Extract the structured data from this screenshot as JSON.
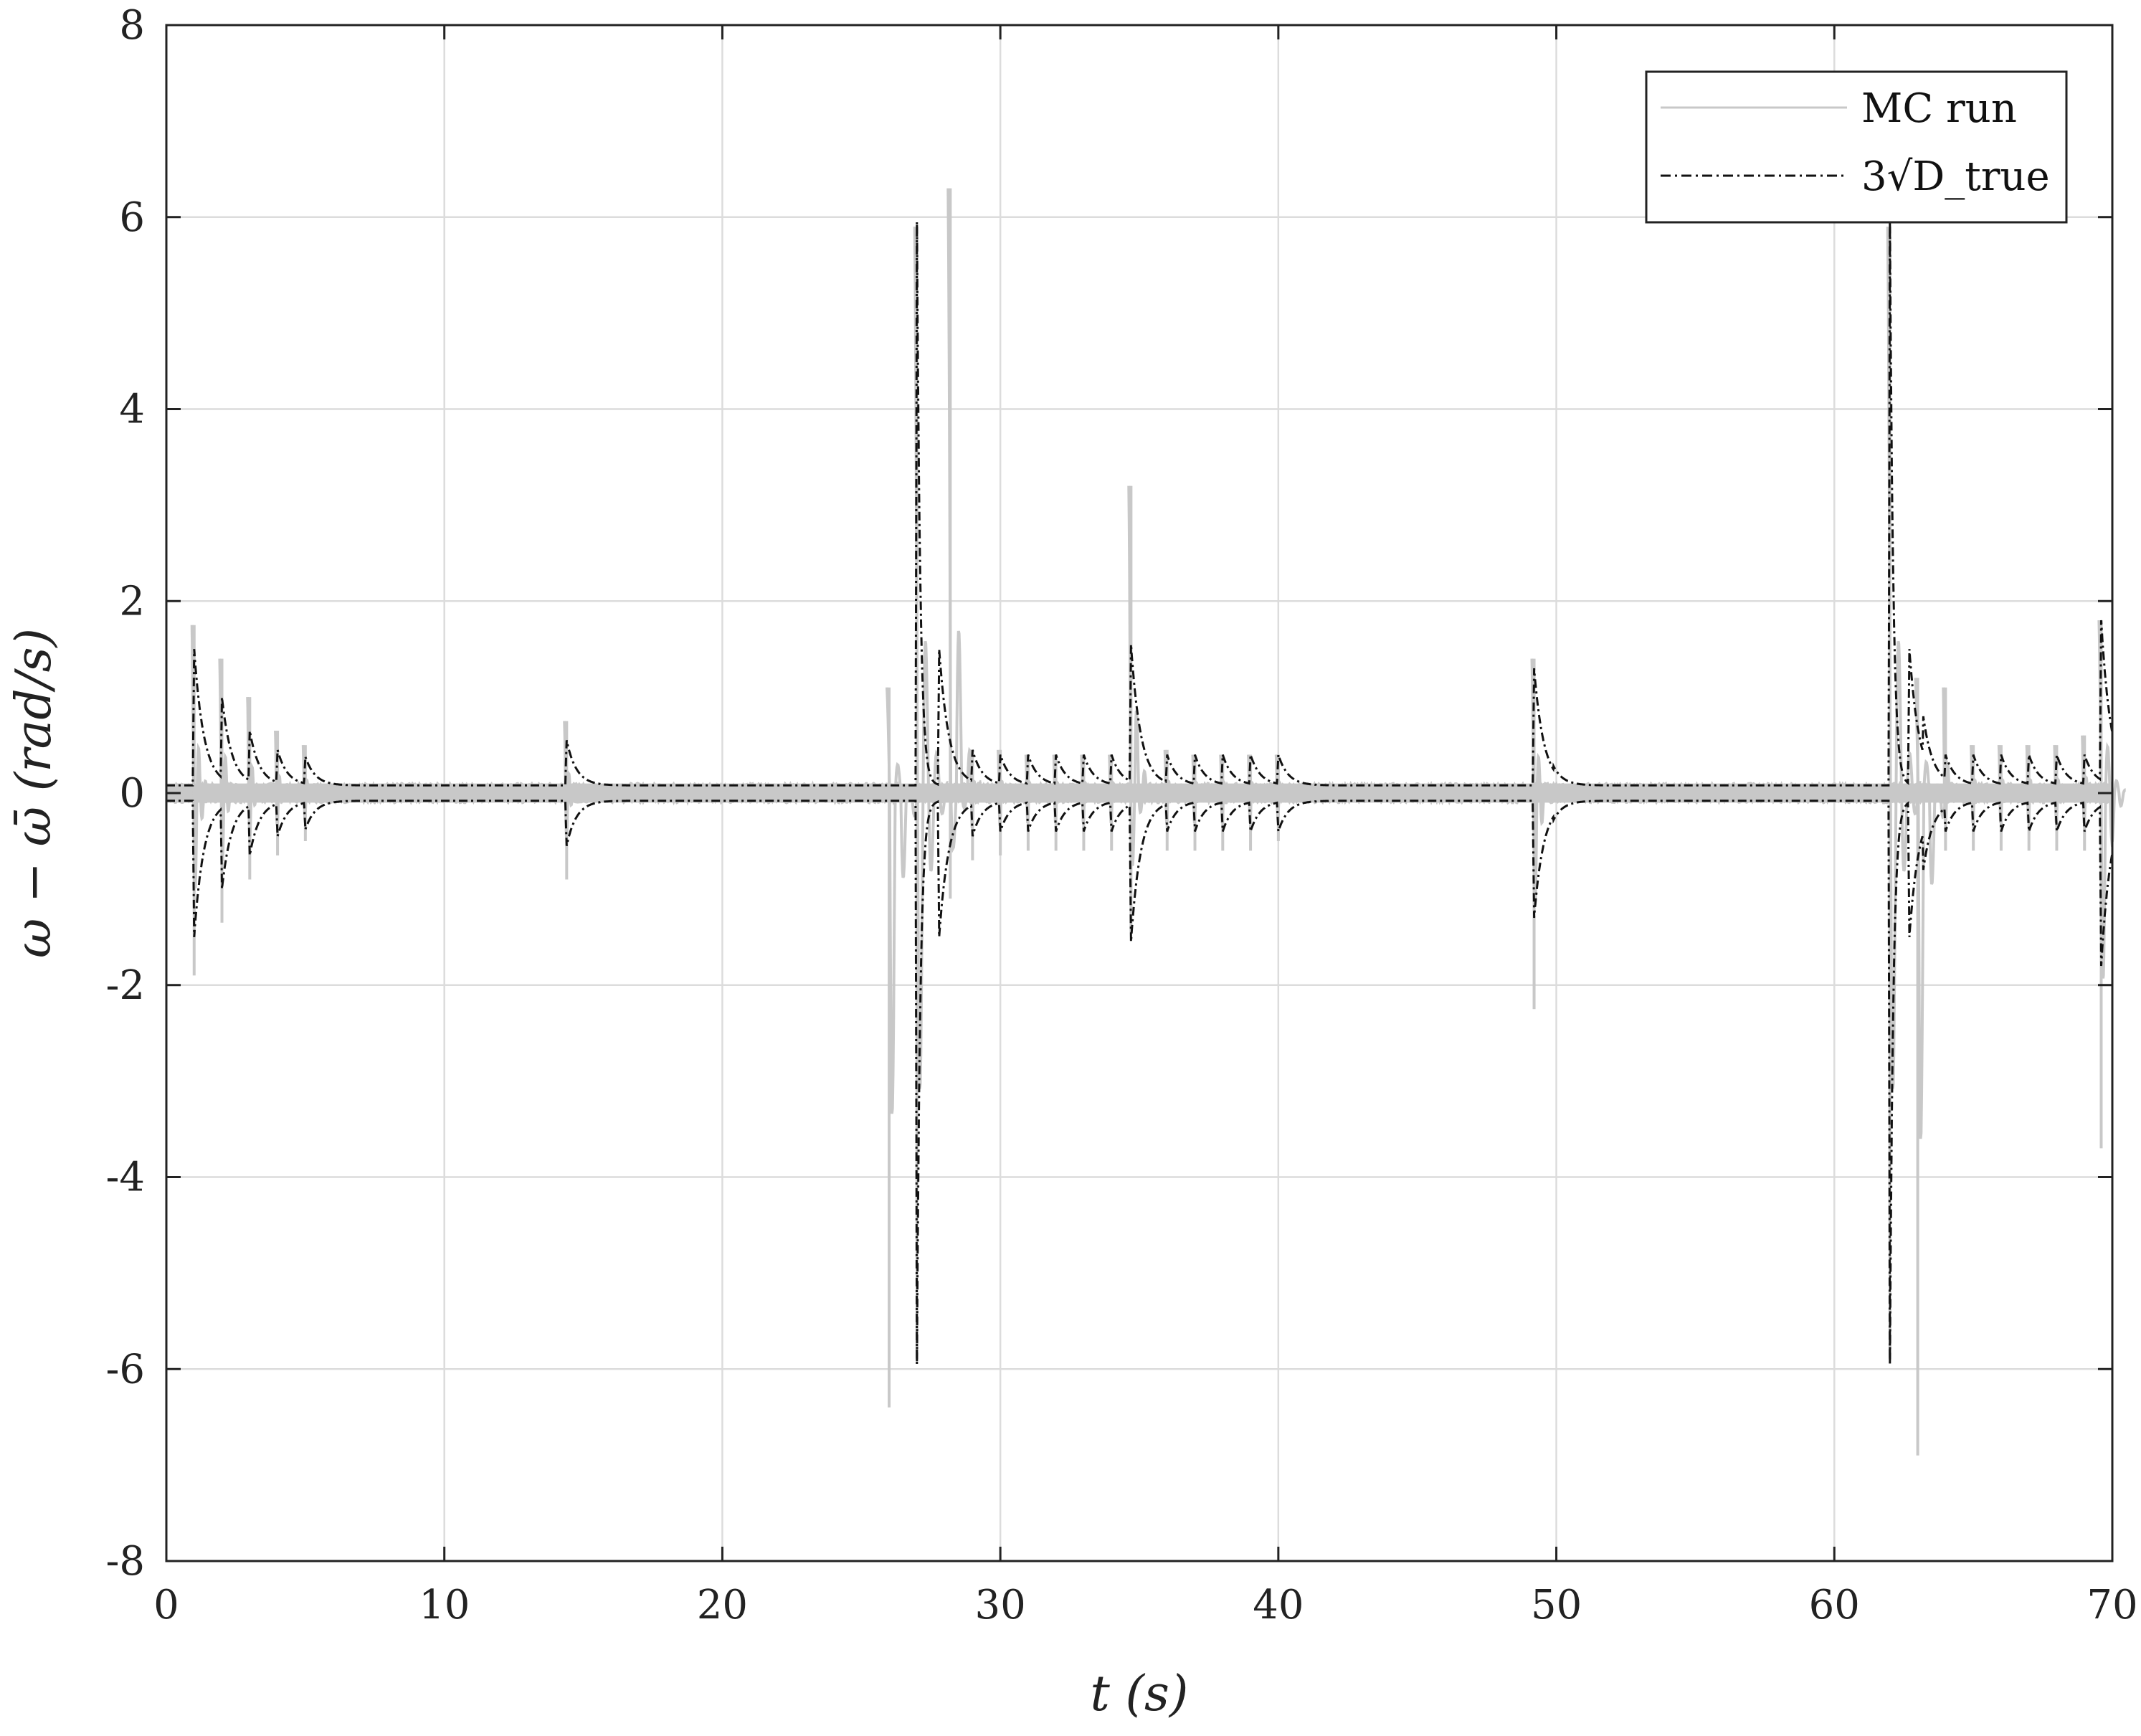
{
  "chart_data": {
    "type": "line",
    "title": "",
    "xlabel": "t (s)",
    "ylabel": "ω − ω̄ (rad/s)",
    "xlim": [
      0,
      70
    ],
    "ylim": [
      -8,
      8
    ],
    "xticks": [
      0,
      10,
      20,
      30,
      40,
      50,
      60,
      70
    ],
    "yticks": [
      -8,
      -6,
      -4,
      -2,
      0,
      2,
      4,
      6,
      8
    ],
    "xtick_labels": [
      "0",
      "10",
      "20",
      "30",
      "40",
      "50",
      "60",
      "70"
    ],
    "ytick_labels": [
      "-8",
      "-6",
      "-4",
      "-2",
      "0",
      "2",
      "4",
      "6",
      "8"
    ],
    "grid": true,
    "legend_position": "top-right",
    "series": [
      {
        "name": "MC run",
        "color": "#c8c8c8",
        "style": "solid",
        "baseline_band": 0.1,
        "events": [
          {
            "t": 1.0,
            "peak": 1.75,
            "trough": -1.9
          },
          {
            "t": 2.0,
            "peak": 1.4,
            "trough": -1.35
          },
          {
            "t": 3.0,
            "peak": 1.0,
            "trough": -0.9
          },
          {
            "t": 4.0,
            "peak": 0.65,
            "trough": -0.65
          },
          {
            "t": 5.0,
            "peak": 0.5,
            "trough": -0.5
          },
          {
            "t": 14.4,
            "peak": 0.75,
            "trough": -0.9
          },
          {
            "t": 26.0,
            "peak": 1.1,
            "trough": -6.4
          },
          {
            "t": 27.0,
            "peak": 5.9,
            "trough": -5.9
          },
          {
            "t": 28.2,
            "peak": 6.3,
            "trough": -1.1
          },
          {
            "t": 29.0,
            "peak": 0.45,
            "trough": -0.7
          },
          {
            "t": 30.0,
            "peak": 0.45,
            "trough": -0.65
          },
          {
            "t": 31.0,
            "peak": 0.4,
            "trough": -0.6
          },
          {
            "t": 32.0,
            "peak": 0.4,
            "trough": -0.6
          },
          {
            "t": 33.0,
            "peak": 0.4,
            "trough": -0.6
          },
          {
            "t": 34.0,
            "peak": 0.4,
            "trough": -0.6
          },
          {
            "t": 34.7,
            "peak": 3.2,
            "trough": -1.45
          },
          {
            "t": 36.0,
            "peak": 0.45,
            "trough": -0.6
          },
          {
            "t": 37.0,
            "peak": 0.4,
            "trough": -0.6
          },
          {
            "t": 38.0,
            "peak": 0.4,
            "trough": -0.6
          },
          {
            "t": 39.0,
            "peak": 0.4,
            "trough": -0.6
          },
          {
            "t": 40.0,
            "peak": 0.4,
            "trough": -0.5
          },
          {
            "t": 49.2,
            "peak": 1.4,
            "trough": -2.25
          },
          {
            "t": 62.0,
            "peak": 5.9,
            "trough": -5.9
          },
          {
            "t": 63.0,
            "peak": 1.2,
            "trough": -6.9
          },
          {
            "t": 64.0,
            "peak": 1.1,
            "trough": -0.6
          },
          {
            "t": 65.0,
            "peak": 0.5,
            "trough": -0.6
          },
          {
            "t": 66.0,
            "peak": 0.5,
            "trough": -0.6
          },
          {
            "t": 67.0,
            "peak": 0.5,
            "trough": -0.6
          },
          {
            "t": 68.0,
            "peak": 0.5,
            "trough": -0.6
          },
          {
            "t": 69.0,
            "peak": 0.6,
            "trough": -0.6
          },
          {
            "t": 69.6,
            "peak": 1.8,
            "trough": -3.7
          }
        ]
      },
      {
        "name": "3√D_true",
        "color": "#111111",
        "style": "dash-dot",
        "baseline": 0.08,
        "symmetric": true,
        "events": [
          {
            "t": 1.0,
            "peak": 1.5
          },
          {
            "t": 1.5,
            "peak": 0.3
          },
          {
            "t": 2.0,
            "peak": 1.0
          },
          {
            "t": 2.5,
            "peak": 0.2
          },
          {
            "t": 3.0,
            "peak": 0.65
          },
          {
            "t": 4.0,
            "peak": 0.45
          },
          {
            "t": 5.0,
            "peak": 0.38
          },
          {
            "t": 14.4,
            "peak": 0.55
          },
          {
            "t": 15.0,
            "peak": 0.12
          },
          {
            "t": 27.0,
            "peak": 5.95
          },
          {
            "t": 27.8,
            "peak": 1.5
          },
          {
            "t": 29.0,
            "peak": 0.45
          },
          {
            "t": 30.0,
            "peak": 0.4
          },
          {
            "t": 31.0,
            "peak": 0.4
          },
          {
            "t": 32.0,
            "peak": 0.4
          },
          {
            "t": 33.0,
            "peak": 0.4
          },
          {
            "t": 34.0,
            "peak": 0.4
          },
          {
            "t": 34.7,
            "peak": 1.55
          },
          {
            "t": 35.3,
            "peak": 0.32
          },
          {
            "t": 36.0,
            "peak": 0.4
          },
          {
            "t": 37.0,
            "peak": 0.4
          },
          {
            "t": 38.0,
            "peak": 0.4
          },
          {
            "t": 39.0,
            "peak": 0.4
          },
          {
            "t": 40.0,
            "peak": 0.4
          },
          {
            "t": 49.2,
            "peak": 1.3
          },
          {
            "t": 49.9,
            "peak": 0.28
          },
          {
            "t": 62.0,
            "peak": 5.95
          },
          {
            "t": 62.7,
            "peak": 1.5
          },
          {
            "t": 63.2,
            "peak": 0.8
          },
          {
            "t": 64.0,
            "peak": 0.4
          },
          {
            "t": 65.0,
            "peak": 0.4
          },
          {
            "t": 66.0,
            "peak": 0.4
          },
          {
            "t": 67.0,
            "peak": 0.4
          },
          {
            "t": 68.0,
            "peak": 0.4
          },
          {
            "t": 69.0,
            "peak": 0.4
          },
          {
            "t": 69.6,
            "peak": 1.8
          }
        ]
      }
    ]
  }
}
